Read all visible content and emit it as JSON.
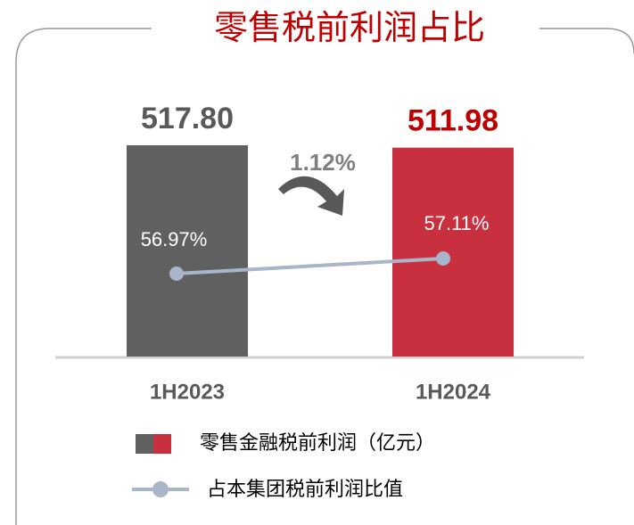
{
  "chart_data": {
    "type": "bar_line",
    "title": "零售税前利润占比",
    "categories": [
      "1H2023",
      "1H2024"
    ],
    "series": [
      {
        "name": "零售金融税前利润（亿元）",
        "type": "bar",
        "colors": [
          "#606060",
          "#c8303f"
        ],
        "label_colors": [
          "#595959",
          "#c00000"
        ],
        "values": [
          517.8,
          511.98
        ],
        "value_labels": [
          "517.80",
          "511.98"
        ]
      },
      {
        "name": "占本集团税前利润比值",
        "type": "line",
        "color": "#a9b5c9",
        "values": [
          56.97,
          57.11
        ],
        "value_labels": [
          "56.97%",
          "57.11%"
        ]
      }
    ],
    "annotation": "1.12%"
  }
}
